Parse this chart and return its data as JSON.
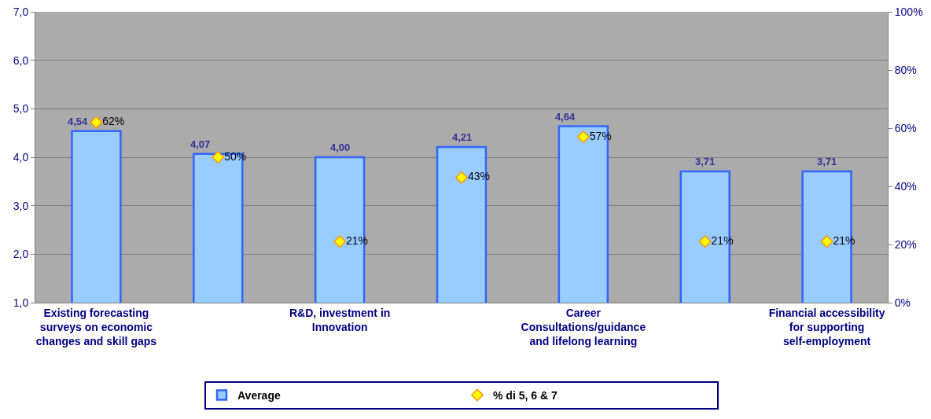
{
  "chart_data": {
    "type": "bar",
    "categories": [
      "Existing forecasting surveys on economic changes and skill gaps",
      null,
      "R&D, investment in Innovation",
      null,
      "Career Consultations/guidance and lifelong learning",
      null,
      "Financial accessibility for supporting self-employment"
    ],
    "series": [
      {
        "name": "Average",
        "color": "#99ccff",
        "values": [
          4.54,
          4.07,
          4.0,
          4.21,
          4.64,
          3.71,
          3.71
        ],
        "value_labels": [
          "4,54",
          "4,07",
          "4,00",
          "4,21",
          "4,64",
          "3,71",
          "3,71"
        ]
      },
      {
        "name": "% di 5, 6 & 7",
        "type": "scatter",
        "axis": "y2",
        "color": "#ffff00",
        "values": [
          62,
          50,
          21,
          43,
          57,
          21,
          21
        ],
        "value_labels": [
          "62%",
          "50%",
          "21%",
          "43%",
          "57%",
          "21%",
          "21%"
        ]
      }
    ],
    "ylim": [
      1,
      7
    ],
    "yticks": [
      {
        "value": 1,
        "label": "1,0"
      },
      {
        "value": 2,
        "label": "2,0"
      },
      {
        "value": 3,
        "label": "3,0"
      },
      {
        "value": 4,
        "label": "4,0"
      },
      {
        "value": 5,
        "label": "5,0"
      },
      {
        "value": 6,
        "label": "6,0"
      },
      {
        "value": 7,
        "label": "7,0"
      }
    ],
    "y2lim": [
      0,
      100
    ],
    "y2ticks": [
      {
        "value": 0,
        "label": "0%"
      },
      {
        "value": 20,
        "label": "20%"
      },
      {
        "value": 40,
        "label": "40%"
      },
      {
        "value": 60,
        "label": "60%"
      },
      {
        "value": 80,
        "label": "80%"
      },
      {
        "value": 100,
        "label": "100%"
      }
    ],
    "grid": "y",
    "legend": "bottom",
    "marker": "diamond"
  }
}
